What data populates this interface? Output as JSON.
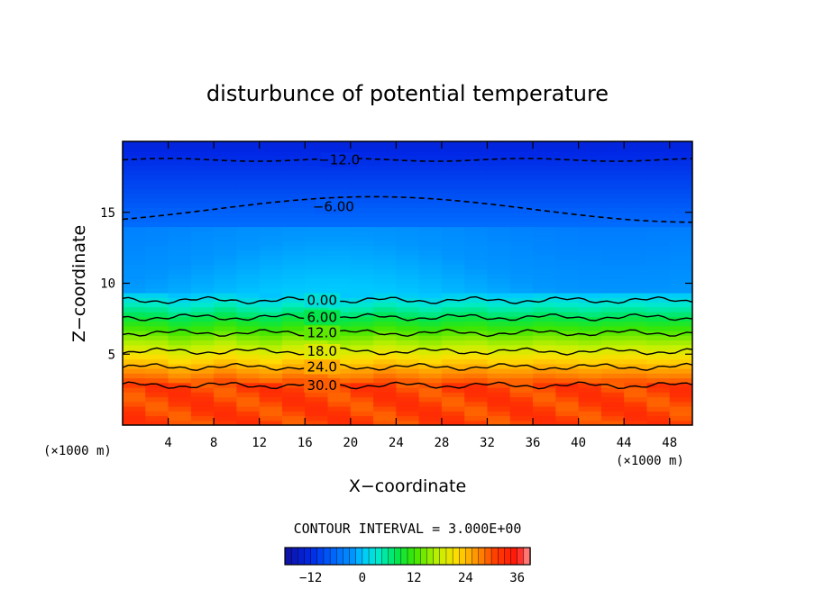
{
  "chart_data": {
    "type": "filled-contour",
    "title": "disturbunce of potential temperature",
    "xlabel": "X−coordinate",
    "ylabel": "Z−coordinate",
    "x_unit_left": "(×1000 m)",
    "x_unit_right": "(×1000 m)",
    "xlim": [
      0,
      50
    ],
    "ylim": [
      0,
      20
    ],
    "x_ticks": [
      "4",
      "8",
      "12",
      "16",
      "20",
      "24",
      "28",
      "32",
      "36",
      "40",
      "44",
      "48"
    ],
    "y_ticks": [
      "5",
      "10",
      "15"
    ],
    "contour_interval_text": "CONTOUR INTERVAL = 3.000E+00",
    "contour_labels": [
      {
        "text": "−12.0",
        "x": 19,
        "z": 18.7,
        "dashed": true
      },
      {
        "text": "−6.00",
        "x": 18.5,
        "z": 15.4,
        "dashed": true
      },
      {
        "text": "0.00",
        "x": 17.5,
        "z": 8.8,
        "dashed": false
      },
      {
        "text": "6.00",
        "x": 17.5,
        "z": 7.6,
        "dashed": false
      },
      {
        "text": "12.0",
        "x": 17.5,
        "z": 6.5,
        "dashed": false
      },
      {
        "text": "18.0",
        "x": 17.5,
        "z": 5.2,
        "dashed": false
      },
      {
        "text": "24.0",
        "x": 17.5,
        "z": 4.1,
        "dashed": false
      },
      {
        "text": "30.0",
        "x": 17.5,
        "z": 2.8,
        "dashed": false
      }
    ],
    "colorbar": {
      "range": [
        -18,
        39
      ],
      "tick_labels": [
        "−12",
        "0",
        "12",
        "24",
        "36"
      ],
      "tick_values": [
        -12,
        0,
        12,
        24,
        36
      ]
    },
    "colors": {
      "min": "#1010c0",
      "blue": "#0060ff",
      "sky": "#00a8ff",
      "cyan": "#00e0d0",
      "green": "#20e020",
      "yellow": "#f0f000",
      "orange": "#ff9000",
      "red": "#ff2000"
    }
  }
}
